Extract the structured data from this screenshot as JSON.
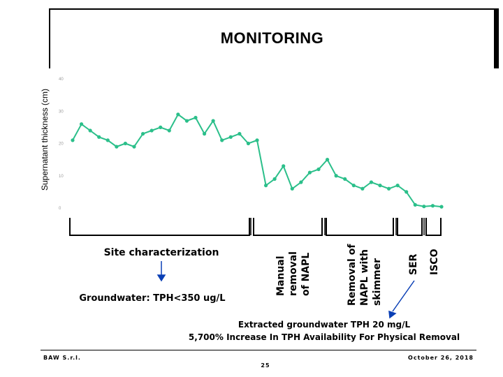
{
  "title": "MONITORING",
  "chart_data": {
    "type": "line",
    "ylabel": "Supernatant thickness (cm)",
    "ylim": [
      0,
      40
    ],
    "yticks": [
      "0",
      "10",
      "20",
      "30",
      "40"
    ],
    "grid": false,
    "series_color": "#2bbf8a",
    "values": [
      21,
      26,
      24,
      22,
      21,
      19,
      20,
      19,
      23,
      24,
      25,
      24,
      29,
      27,
      28,
      23,
      27,
      21,
      22,
      23,
      20,
      21,
      7,
      9,
      13,
      6,
      8,
      11,
      12,
      15,
      10,
      9,
      7,
      6,
      8,
      7,
      6,
      7,
      5,
      1,
      0.5,
      0.7,
      0.4
    ]
  },
  "phases": {
    "site_characterization": "Site characterization",
    "manual_removal": [
      "Manual",
      "removal",
      "of NAPL"
    ],
    "skimmer": [
      "Removal of",
      "NAPL with",
      "skimmer"
    ],
    "ser": "SER",
    "isco": "ISCO"
  },
  "groundwater_note": "Groundwater: TPH<350 ug/L",
  "extracted_line1": "Extracted groundwater TPH 20 mg/L",
  "extracted_line2": "5,700% Increase In TPH Availability For Physical Removal",
  "footer": {
    "company": "BAW S.r.l.",
    "page": "25",
    "date": "October 26, 2018"
  }
}
